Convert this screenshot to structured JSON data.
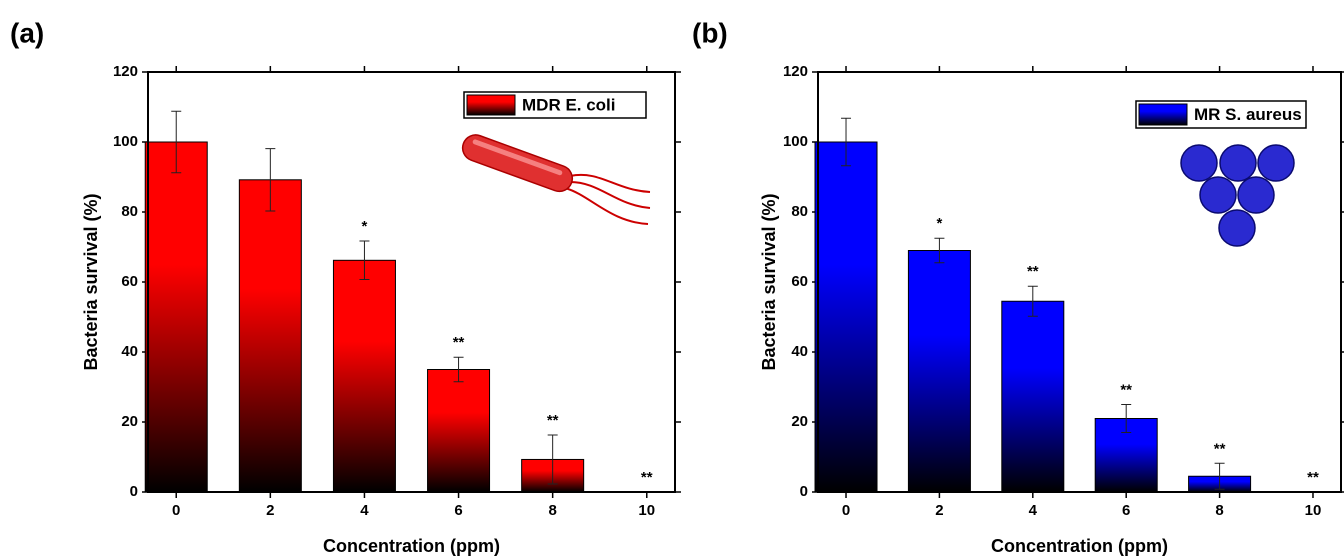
{
  "chart_data": [
    {
      "type": "bar",
      "title": "(a)",
      "x_label": "Concentration (ppm)",
      "y_label": "Bacteria survival (%)",
      "categories": [
        "0",
        "2",
        "4",
        "6",
        "8",
        "10"
      ],
      "series": [
        {
          "name": "MDR E. coli",
          "color": "#ff0000",
          "values": [
            100,
            89.2,
            66.2,
            35,
            9.3,
            0
          ],
          "errors": [
            8.8,
            8.9,
            5.5,
            3.5,
            7,
            0
          ]
        }
      ],
      "annotations": [
        null,
        null,
        "*",
        "**",
        "**",
        "**"
      ],
      "ylim": [
        0,
        120
      ],
      "yticks": [
        0,
        20,
        40,
        60,
        80,
        100,
        120
      ],
      "legend": "upper right"
    },
    {
      "type": "bar",
      "title": "(b)",
      "x_label": "Concentration (ppm)",
      "y_label": "Bacteria survival (%)",
      "categories": [
        "0",
        "2",
        "4",
        "6",
        "8",
        "10"
      ],
      "series": [
        {
          "name": "MR S. aureus",
          "color": "#0000ff",
          "values": [
            100,
            69,
            54.5,
            21,
            4.5,
            0
          ],
          "errors": [
            6.8,
            3.5,
            4.3,
            4,
            3.7,
            0
          ]
        }
      ],
      "annotations": [
        null,
        "*",
        "**",
        "**",
        "**",
        "**"
      ],
      "ylim": [
        0,
        120
      ],
      "yticks": [
        0,
        20,
        40,
        60,
        80,
        100,
        120
      ],
      "legend": "upper right"
    }
  ]
}
